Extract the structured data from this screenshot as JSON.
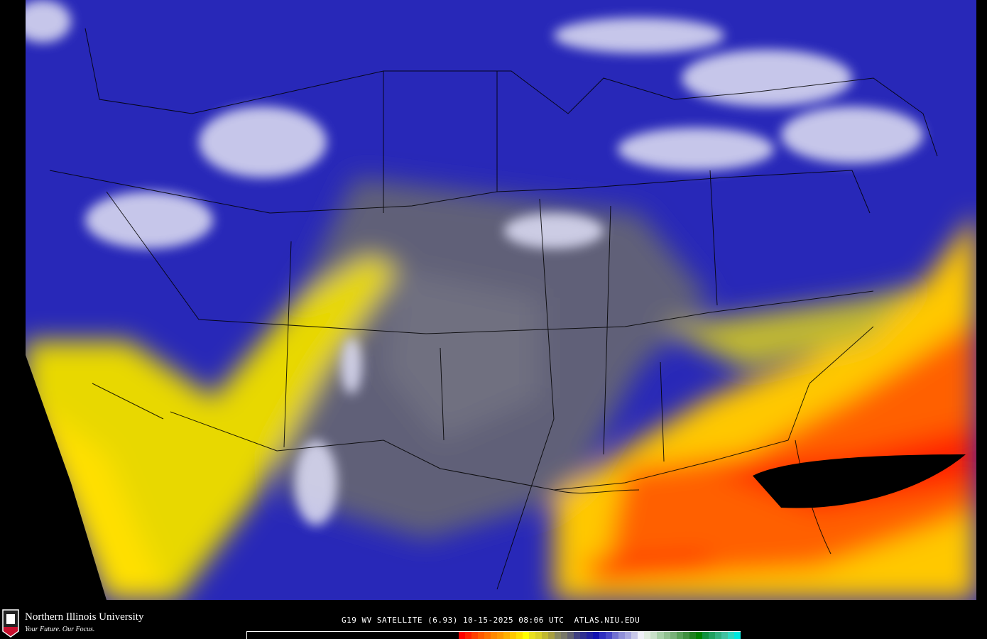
{
  "logo": {
    "name": "Northern Illinois University",
    "tagline": "Your Future. Our Focus.",
    "shield_text": "NIU"
  },
  "caption": "G19 WV SATELLITE (6.93) 10-15-2025 08:06 UTC  ATLAS.NIU.EDU",
  "colorbar": [
    "#ff0000",
    "#ff2000",
    "#ff4000",
    "#ff5a00",
    "#ff7000",
    "#ff8800",
    "#ff9800",
    "#ffb000",
    "#ffc800",
    "#ffe000",
    "#ffff00",
    "#e8e020",
    "#d8d028",
    "#c0b830",
    "#a8a040",
    "#888860",
    "#787868",
    "#606070",
    "#404080",
    "#303090",
    "#2020a0",
    "#1010b0",
    "#3030c0",
    "#4848c8",
    "#7070d0",
    "#9090d8",
    "#a8a8e0",
    "#c8c8e8",
    "#f0f0f8",
    "#e0ece0",
    "#c8e0c8",
    "#a8d0a8",
    "#90c090",
    "#78b078",
    "#58a058",
    "#409040",
    "#208020",
    "#008000",
    "#109040",
    "#20a060",
    "#30b080",
    "#40c0a0",
    "#30d8c0",
    "#00e8e0"
  ],
  "map_colors": {
    "background": "#000000",
    "deep_blue": "#1818b0",
    "gray": "#606070",
    "yellow": "#f0e000",
    "red": "#ff3000",
    "white": "#f0f0f8"
  }
}
